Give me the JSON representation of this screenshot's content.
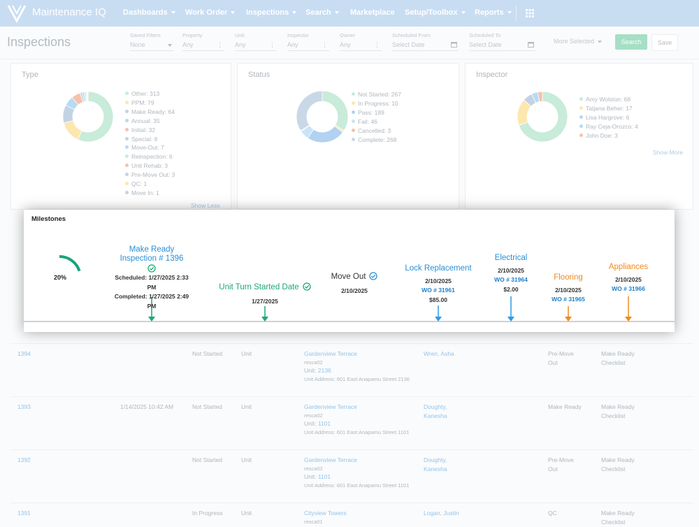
{
  "nav": {
    "brand": "Maintenance IQ",
    "items": [
      {
        "label": "Dashboards",
        "dropdown": true
      },
      {
        "label": "Work Order",
        "dropdown": true
      },
      {
        "label": "Inspections",
        "dropdown": true
      },
      {
        "label": "Search",
        "dropdown": true
      },
      {
        "label": "Marketplace",
        "dropdown": false
      },
      {
        "label": "Setup/Toolbox",
        "dropdown": true
      },
      {
        "label": "Reports",
        "dropdown": true
      }
    ]
  },
  "header": {
    "title": "Inspections",
    "filters": [
      {
        "label": "Saved Filters",
        "value": "None"
      },
      {
        "label": "Property",
        "value": "Any"
      },
      {
        "label": "Unit",
        "value": "Any"
      },
      {
        "label": "Inspector",
        "value": "Any"
      },
      {
        "label": "Owner",
        "value": "Any"
      },
      {
        "label": "Scheduled From",
        "value": "Select Date"
      },
      {
        "label": "Scheduled To",
        "value": "Select Date"
      }
    ],
    "more": "More Selected",
    "buttons": [
      "Search",
      "Save"
    ]
  },
  "panels": [
    {
      "title": "Type",
      "toggle": "Show Less",
      "items": [
        {
          "label": "Other:",
          "value": 313,
          "color": "#c8ebda"
        },
        {
          "label": "PPM:",
          "value": 79,
          "color": "#fde7b0"
        },
        {
          "label": "Make Ready:",
          "value": 64,
          "color": "#c3d3e4"
        },
        {
          "label": "Annual:",
          "value": 35,
          "color": "#b5dbf6"
        },
        {
          "label": "Initial:",
          "value": 32,
          "color": "#f6c1ab"
        },
        {
          "label": "Special:",
          "value": 8,
          "color": "#c3d3e4"
        },
        {
          "label": "Move-Out:",
          "value": 7,
          "color": "#b5dbf6"
        },
        {
          "label": "Reinspection:",
          "value": 6,
          "color": "#c8ebda"
        },
        {
          "label": "Unit Rehab:",
          "value": 3,
          "color": "#f6c1ab"
        },
        {
          "label": "Pre-Move Out:",
          "value": 3,
          "color": "#c3d3e4"
        },
        {
          "label": "QC:",
          "value": 1,
          "color": "#fde7b0"
        },
        {
          "label": "Move In:",
          "value": 1,
          "color": "#c3d3e4"
        }
      ]
    },
    {
      "title": "Status",
      "items": [
        {
          "label": "Not Started:",
          "value": 267,
          "color": "#c8ebda"
        },
        {
          "label": "In Progress:",
          "value": 10,
          "color": "#fde7b0"
        },
        {
          "label": "Pass:",
          "value": 189,
          "color": "#b1d2f0"
        },
        {
          "label": "Fail:",
          "value": 46,
          "color": "#c9e4f8"
        },
        {
          "label": "Cancelled:",
          "value": 3,
          "color": "#f6c1ab"
        },
        {
          "label": "Complete:",
          "value": 268,
          "color": "#c9d8e7"
        }
      ]
    },
    {
      "title": "Inspector",
      "toggle": "Show More",
      "items": [
        {
          "label": "Amy Wolston:",
          "value": 68,
          "color": "#c8ebda"
        },
        {
          "label": "Tatjana Beher:",
          "value": 17,
          "color": "#fde7b0"
        },
        {
          "label": "Lisa Hargrove:",
          "value": 6,
          "color": "#c3d3e4"
        },
        {
          "label": "Ray Ceja-Orozco:",
          "value": 4,
          "color": "#b5dbf6"
        },
        {
          "label": "John Doe:",
          "value": 3,
          "color": "#f6c1ab"
        }
      ]
    }
  ],
  "table": {
    "rows": [
      {
        "id": "1394",
        "status": "Not Started",
        "kind": "Unit",
        "property": "Gardenview Terrace",
        "code": "resca02",
        "unit_label": "Unit:",
        "unit": "2136",
        "address": "Unit Address: 601 East Anapamu Street 2136",
        "inspector": "Wren, Asha",
        "type": "Pre-Move Out",
        "template": "Make Ready Checklist"
      },
      {
        "id": "1393",
        "date": "1/14/2025 10:42 AM",
        "status": "Not Started",
        "kind": "Unit",
        "property": "Gardenview Terrace",
        "code": "resca02",
        "unit_label": "Unit:",
        "unit": "1101",
        "address": "Unit Address: 601 East Anapamu Street 1101",
        "inspector": "Doughty, Kanesha",
        "type": "Make Ready",
        "template": "Make Ready Checklist"
      },
      {
        "id": "1392",
        "status": "Not Started",
        "kind": "Unit",
        "property": "Gardenview Terrace",
        "code": "resca02",
        "unit_label": "Unit:",
        "unit": "1101",
        "address": "Unit Address: 601 East Anapamu Street 1101",
        "inspector": "Doughty, Kanesha",
        "type": "Pre-Move Out",
        "template": "Make Ready Checklist"
      },
      {
        "id": "1391",
        "status": "In Progress",
        "kind": "Unit",
        "property": "Cityview Towers",
        "code": "resca01",
        "inspector": "Logan, Justin",
        "type": "QC",
        "template": "Make Ready Checklist"
      }
    ]
  },
  "milestones": {
    "title": "Milestones",
    "progress": {
      "value": 20,
      "label": "20%"
    },
    "items": [
      {
        "title": "Make Ready Inspection # 1396",
        "color": "#2a8fd6",
        "check": "#19a974",
        "arrow": "#19a974",
        "scheduled": "Scheduled: 1/27/2025 2:33 PM",
        "completed": "Completed: 1/27/2025 2:49 PM"
      },
      {
        "title": "Unit Turn Started Date",
        "color": "#19a974",
        "check": "#19a974",
        "arrow": "#19a974",
        "date": "1/27/2025"
      },
      {
        "title": "Move Out",
        "color": "#333333",
        "check": "#2a8fd6",
        "date": "2/10/2025"
      },
      {
        "title": "Lock Replacement",
        "color": "#2a8fd6",
        "arrow": "#2a9be8",
        "date": "2/10/2025",
        "wo": "WO # 31961",
        "cost": "$85.00"
      },
      {
        "title": "Electrical",
        "color": "#2a8fd6",
        "arrow": "#2a9be8",
        "date": "2/10/2025",
        "wo": "WO # 31964",
        "cost": "$2.00"
      },
      {
        "title": "Flooring",
        "color": "#f08a1c",
        "arrow": "#f08a1c",
        "date": "2/10/2025",
        "wo": "WO # 31965"
      },
      {
        "title": "Appliances",
        "color": "#f08a1c",
        "arrow": "#f08a1c",
        "date": "2/10/2025",
        "wo": "WO # 31966"
      }
    ]
  }
}
